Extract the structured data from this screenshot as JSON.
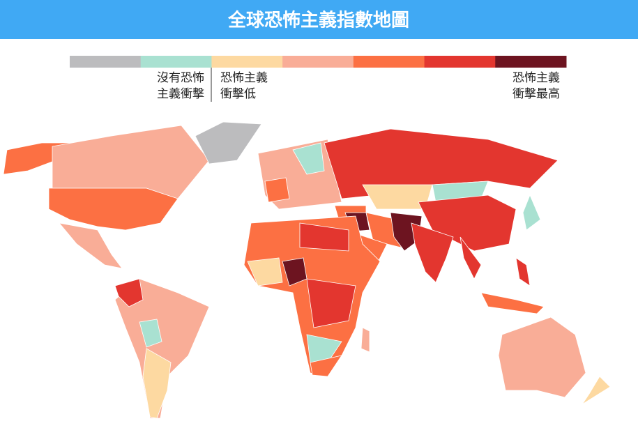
{
  "header": {
    "title": "全球恐怖主義指數地圖"
  },
  "legend": {
    "colors": [
      "#bcbcbe",
      "#a9e1d1",
      "#fdd9a1",
      "#f9ad97",
      "#fc7043",
      "#e3362f",
      "#6d1420"
    ],
    "low_none": [
      "沒有恐怖",
      "主義衝擊"
    ],
    "low": [
      "恐怖主義",
      "衝擊低"
    ],
    "highest": [
      "恐怖主義",
      "衝擊最高"
    ]
  }
}
